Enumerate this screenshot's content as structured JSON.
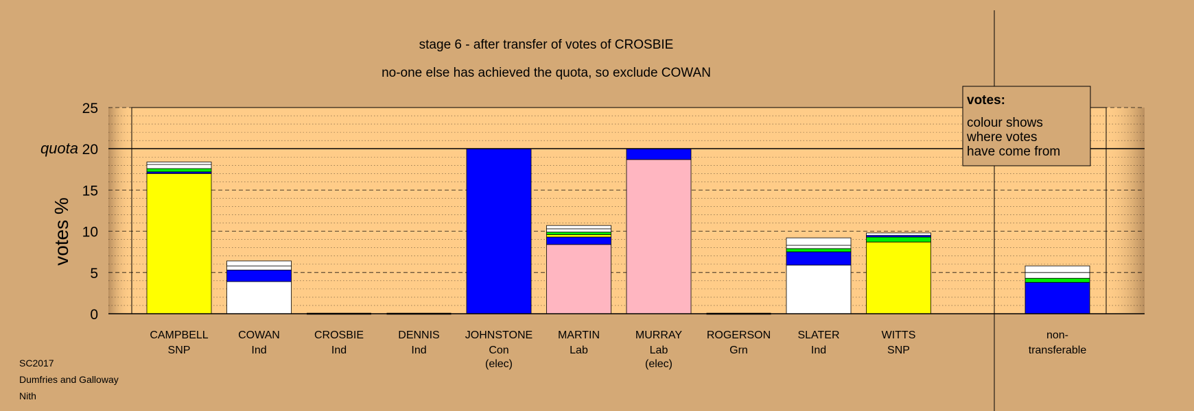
{
  "chart_data": {
    "type": "bar",
    "stacked": true,
    "title": "stage 6 - after transfer of votes of CROSBIE",
    "subtitle": "no-one else has achieved the quota, so exclude COWAN",
    "ylabel": "votes %",
    "ylim": [
      0,
      25
    ],
    "yticks": [
      "0",
      "5",
      "10",
      "15",
      "20",
      "25"
    ],
    "quota_label": "quota",
    "quota_value": 20,
    "legend_title": "votes:",
    "legend_lines": [
      "colour shows",
      "where votes",
      "have come from"
    ],
    "candidates": [
      {
        "name": "CAMPBELL",
        "party": "SNP",
        "note": "",
        "segments": [
          {
            "color": "#ffff00",
            "value": 17.0
          },
          {
            "color": "#0000ff",
            "value": 0.2
          },
          {
            "color": "#00ee00",
            "value": 0.4
          },
          {
            "color": "#ffffff",
            "value": 0.5
          },
          {
            "color": "#ffffff",
            "value": 0.3
          }
        ]
      },
      {
        "name": "COWAN",
        "party": "Ind",
        "note": "",
        "segments": [
          {
            "color": "#ffffff",
            "value": 3.9
          },
          {
            "color": "#0000ff",
            "value": 1.4
          },
          {
            "color": "#ffffff",
            "value": 0.5
          },
          {
            "color": "#ffffff",
            "value": 0.6
          }
        ]
      },
      {
        "name": "CROSBIE",
        "party": "Ind",
        "note": "",
        "segments": []
      },
      {
        "name": "DENNIS",
        "party": "Ind",
        "note": "",
        "segments": []
      },
      {
        "name": "JOHNSTONE",
        "party": "Con",
        "note": "(elec)",
        "segments": [
          {
            "color": "#0000ff",
            "value": 20.0
          }
        ]
      },
      {
        "name": "MARTIN",
        "party": "Lab",
        "note": "",
        "segments": [
          {
            "color": "#ffb6c1",
            "value": 8.4
          },
          {
            "color": "#0000ff",
            "value": 0.9
          },
          {
            "color": "#ffff00",
            "value": 0.3
          },
          {
            "color": "#00ee00",
            "value": 0.3
          },
          {
            "color": "#ffffff",
            "value": 0.4
          },
          {
            "color": "#ffffff",
            "value": 0.4
          }
        ]
      },
      {
        "name": "MURRAY",
        "party": "Lab",
        "note": "(elec)",
        "segments": [
          {
            "color": "#ffb6c1",
            "value": 18.7
          },
          {
            "color": "#0000ff",
            "value": 1.3
          }
        ]
      },
      {
        "name": "ROGERSON",
        "party": "Grn",
        "note": "",
        "segments": []
      },
      {
        "name": "SLATER",
        "party": "Ind",
        "note": "",
        "segments": [
          {
            "color": "#ffffff",
            "value": 5.9
          },
          {
            "color": "#0000ff",
            "value": 1.6
          },
          {
            "color": "#00ee00",
            "value": 0.4
          },
          {
            "color": "#ffffff",
            "value": 0.4
          },
          {
            "color": "#ffffff",
            "value": 0.9
          }
        ]
      },
      {
        "name": "WITTS",
        "party": "SNP",
        "note": "",
        "segments": [
          {
            "color": "#ffff00",
            "value": 8.7
          },
          {
            "color": "#00ee00",
            "value": 0.6
          },
          {
            "color": "#0000ff",
            "value": 0.2
          },
          {
            "color": "#ffffff",
            "value": 0.3
          }
        ]
      }
    ],
    "nontransferable": {
      "label_line1": "non-",
      "label_line2": "transferable",
      "segments": [
        {
          "color": "#0000ff",
          "value": 3.8
        },
        {
          "color": "#00ee00",
          "value": 0.5
        },
        {
          "color": "#ffffff",
          "value": 0.7
        },
        {
          "color": "#ffffff",
          "value": 0.8
        }
      ]
    }
  },
  "footer": {
    "line1": "SC2017",
    "line2": "Dumfries and Galloway",
    "line3": "Nith"
  },
  "colors": {
    "background": "#d4a976",
    "plot_area": "#ffcc88"
  }
}
